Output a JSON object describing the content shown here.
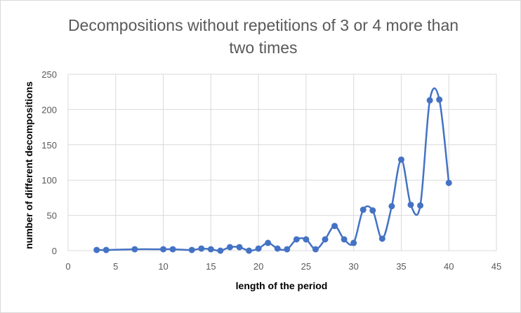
{
  "chart_data": {
    "type": "line",
    "title": "Decompositions without repetitions of 3 or 4 more than two times",
    "xlabel": "length of the period",
    "ylabel": "number of different decompositions",
    "xlim": [
      0,
      45
    ],
    "ylim": [
      0,
      250
    ],
    "xticks": [
      0,
      5,
      10,
      15,
      20,
      25,
      30,
      35,
      40,
      45
    ],
    "yticks": [
      0,
      50,
      100,
      150,
      200,
      250
    ],
    "grid": true,
    "smoothed": true,
    "series": [
      {
        "color": "#4472c4",
        "points": [
          [
            3,
            1
          ],
          [
            4,
            1
          ],
          [
            7,
            2
          ],
          [
            10,
            2
          ],
          [
            11,
            2
          ],
          [
            13,
            1
          ],
          [
            14,
            3
          ],
          [
            15,
            2
          ],
          [
            16,
            0
          ],
          [
            17,
            5
          ],
          [
            18,
            5
          ],
          [
            19,
            0
          ],
          [
            20,
            3
          ],
          [
            21,
            11
          ],
          [
            22,
            3
          ],
          [
            23,
            2
          ],
          [
            24,
            16
          ],
          [
            25,
            16
          ],
          [
            26,
            2
          ],
          [
            27,
            16
          ],
          [
            28,
            35
          ],
          [
            29,
            16
          ],
          [
            30,
            11
          ],
          [
            31,
            58
          ],
          [
            32,
            57
          ],
          [
            33,
            17
          ],
          [
            34,
            63
          ],
          [
            35,
            129
          ],
          [
            36,
            65
          ],
          [
            37,
            64
          ],
          [
            38,
            213
          ],
          [
            39,
            214
          ],
          [
            40,
            96
          ]
        ]
      }
    ]
  }
}
